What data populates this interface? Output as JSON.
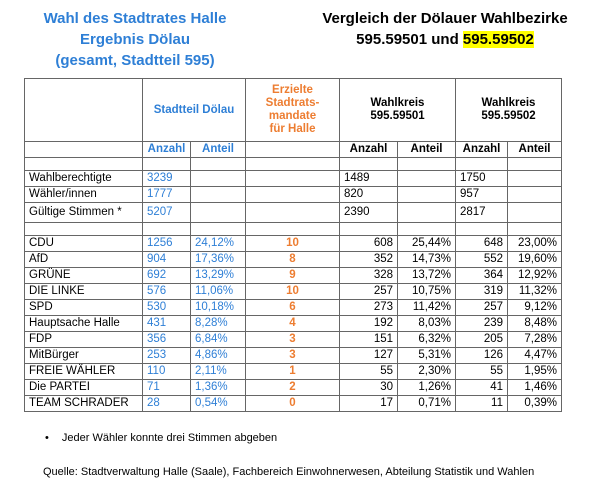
{
  "title_left": {
    "line1": "Wahl des Stadtrates Halle",
    "line2": "Ergebnis Dölau",
    "line3": "(gesamt, Stadtteil 595)"
  },
  "title_right": {
    "line1": "Vergleich der Dölauer Wahlbezirke",
    "line2_plain": "595.59501 und ",
    "line2_highlight": "595.59502"
  },
  "header": {
    "stadtteil": "Stadtteil Dölau",
    "mandate": [
      "Erzielte",
      "Stadtrats-",
      "mandate",
      "für Halle"
    ],
    "wk1": [
      "Wahlkreis",
      "595.59501"
    ],
    "wk2": [
      "Wahlkreis",
      "595.59502"
    ],
    "anzahl": "Anzahl",
    "anteil": "Anteil"
  },
  "general_rows": [
    {
      "label": "Wahlberechtigte",
      "anzahl": "3239",
      "wk1": "1489",
      "wk2": "1750"
    },
    {
      "label": "Wähler/innen",
      "anzahl": "1777",
      "wk1": "820",
      "wk2": "957"
    },
    {
      "label": "Gültige Stimmen *",
      "anzahl": "5207",
      "wk1": "2390",
      "wk2": "2817"
    }
  ],
  "party_rows": [
    {
      "party": "CDU",
      "anzahl": "1256",
      "anteil": "24,12%",
      "mandate": "10",
      "wk1_anzahl": "608",
      "wk1_anteil": "25,44%",
      "wk2_anzahl": "648",
      "wk2_anteil": "23,00%"
    },
    {
      "party": "AfD",
      "anzahl": "904",
      "anteil": "17,36%",
      "mandate": "8",
      "wk1_anzahl": "352",
      "wk1_anteil": "14,73%",
      "wk2_anzahl": "552",
      "wk2_anteil": "19,60%"
    },
    {
      "party": "GRÜNE",
      "anzahl": "692",
      "anteil": "13,29%",
      "mandate": "9",
      "wk1_anzahl": "328",
      "wk1_anteil": "13,72%",
      "wk2_anzahl": "364",
      "wk2_anteil": "12,92%"
    },
    {
      "party": "DIE LINKE",
      "anzahl": "576",
      "anteil": "11,06%",
      "mandate": "10",
      "wk1_anzahl": "257",
      "wk1_anteil": "10,75%",
      "wk2_anzahl": "319",
      "wk2_anteil": "11,32%"
    },
    {
      "party": "SPD",
      "anzahl": "530",
      "anteil": "10,18%",
      "mandate": "6",
      "wk1_anzahl": "273",
      "wk1_anteil": "11,42%",
      "wk2_anzahl": "257",
      "wk2_anteil": "9,12%"
    },
    {
      "party": "Hauptsache Halle",
      "anzahl": "431",
      "anteil": "8,28%",
      "mandate": "4",
      "wk1_anzahl": "192",
      "wk1_anteil": "8,03%",
      "wk2_anzahl": "239",
      "wk2_anteil": "8,48%"
    },
    {
      "party": "FDP",
      "anzahl": "356",
      "anteil": "6,84%",
      "mandate": "3",
      "wk1_anzahl": "151",
      "wk1_anteil": "6,32%",
      "wk2_anzahl": "205",
      "wk2_anteil": "7,28%"
    },
    {
      "party": "MitBürger",
      "anzahl": "253",
      "anteil": "4,86%",
      "mandate": "3",
      "wk1_anzahl": "127",
      "wk1_anteil": "5,31%",
      "wk2_anzahl": "126",
      "wk2_anteil": "4,47%"
    },
    {
      "party": "FREIE WÄHLER",
      "anzahl": "110",
      "anteil": "2,11%",
      "mandate": "1",
      "wk1_anzahl": "55",
      "wk1_anteil": "2,30%",
      "wk2_anzahl": "55",
      "wk2_anteil": "1,95%"
    },
    {
      "party": "Die PARTEI",
      "anzahl": "71",
      "anteil": "1,36%",
      "mandate": "2",
      "wk1_anzahl": "30",
      "wk1_anteil": "1,26%",
      "wk2_anzahl": "41",
      "wk2_anteil": "1,46%"
    },
    {
      "party": "TEAM SCHRADER",
      "anzahl": "28",
      "anteil": "0,54%",
      "mandate": "0",
      "wk1_anzahl": "17",
      "wk1_anteil": "0,71%",
      "wk2_anzahl": "11",
      "wk2_anteil": "0,39%"
    }
  ],
  "footnote": {
    "bullet": "•",
    "text": "Jeder Wähler konnte drei Stimmen abgeben"
  },
  "source": "Quelle:  Stadtverwaltung Halle (Saale), Fachbereich Einwohnerwesen, Abteilung Statistik und Wahlen",
  "colors": {
    "blue": "#2e7fd6",
    "orange": "#ed7d31",
    "highlight": "#ffff00"
  }
}
